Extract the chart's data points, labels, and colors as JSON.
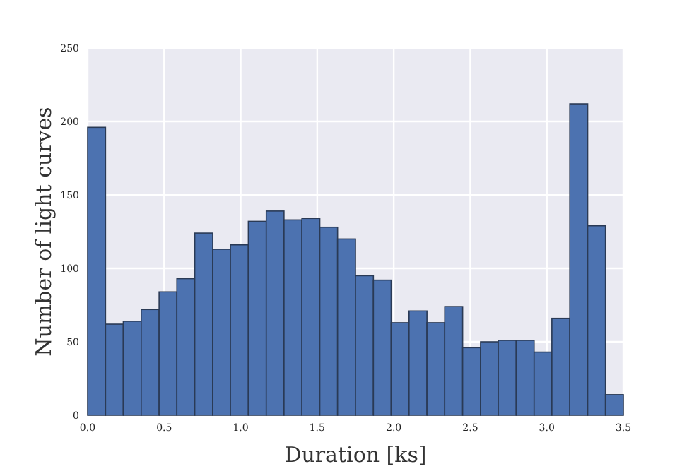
{
  "chart_data": {
    "type": "histogram",
    "xlabel": "Duration [ks]",
    "ylabel": "Number of light curves",
    "bins": [
      0,
      0.117,
      0.233,
      0.35,
      0.467,
      0.583,
      0.7,
      0.817,
      0.933,
      1.05,
      1.167,
      1.283,
      1.4,
      1.517,
      1.633,
      1.75,
      1.867,
      1.983,
      2.1,
      2.217,
      2.333,
      2.45,
      2.567,
      2.683,
      2.8,
      2.917,
      3.033,
      3.15,
      3.267,
      3.383,
      3.5
    ],
    "values": [
      196,
      62,
      64,
      72,
      84,
      93,
      124,
      113,
      116,
      132,
      139,
      133,
      134,
      128,
      120,
      95,
      92,
      63,
      71,
      63,
      74,
      46,
      50,
      51,
      51,
      43,
      66,
      212,
      129,
      14
    ],
    "color": "#4c72b0",
    "xlim": [
      0,
      3.5
    ],
    "xticks": [
      {
        "value": 0,
        "label": "0.0"
      },
      0.5,
      {
        "value": 1,
        "label": "1.0"
      },
      1.5,
      {
        "value": 2,
        "label": "2.0"
      },
      2.5,
      {
        "value": 3,
        "label": "3.0"
      },
      3.5
    ],
    "ylim": [
      0,
      250
    ],
    "yticks": [
      0,
      50,
      100,
      150,
      200,
      250
    ],
    "grid": true
  }
}
